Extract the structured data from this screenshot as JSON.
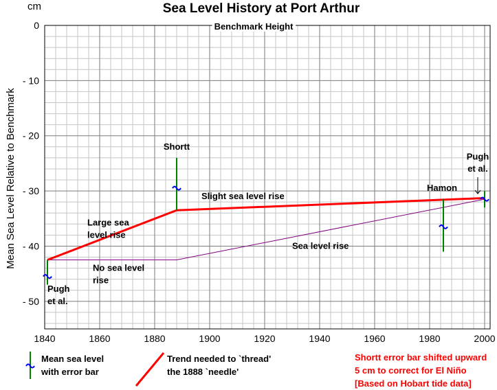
{
  "chart_data": {
    "type": "line",
    "title": "Sea Level History at Port Arthur",
    "unit_label": "cm",
    "ylabel": "Mean Sea Level Relative to Benchmark",
    "xlabel": "",
    "xlim": [
      1840,
      2002
    ],
    "ylim": [
      -55,
      0
    ],
    "x_ticks": [
      1840,
      1860,
      1880,
      1900,
      1920,
      1940,
      1960,
      1980,
      2000
    ],
    "y_ticks": [
      0,
      -10,
      -20,
      -30,
      -40,
      -50
    ],
    "y_tick_labels": [
      "0",
      "- 10",
      "- 20",
      "- 30",
      "- 40",
      "- 50"
    ],
    "grid": true,
    "benchmark": {
      "label": "Benchmark Height",
      "y": 0
    },
    "series": [
      {
        "key": "trend",
        "color": "#ff0000",
        "points": [
          [
            1841,
            -42.5
          ],
          [
            1888,
            -33.5
          ],
          [
            2000,
            -31.3
          ]
        ]
      },
      {
        "key": "sea_level",
        "color": "#800080",
        "points": [
          [
            1841,
            -42.5
          ],
          [
            1888,
            -42.5
          ],
          [
            2000,
            -31.5
          ]
        ]
      }
    ],
    "measurements": [
      {
        "key": "pugh1841",
        "x": 1841,
        "y": -45.5,
        "err_low": -47,
        "err_high": -42.5
      },
      {
        "key": "shortt",
        "x": 1888,
        "y": -29.5,
        "err_low": -33.5,
        "err_high": -24
      },
      {
        "key": "hamon",
        "x": 1985,
        "y": -36.5,
        "err_low": -41,
        "err_high": -31.5
      },
      {
        "key": "pugh2000",
        "x": 2000,
        "y": -31.5,
        "err_low": -33,
        "err_high": -30
      }
    ],
    "annotations": {
      "shortt": "Shortt",
      "hamon": "Hamon",
      "pugh_top": [
        "Pugh",
        "et al."
      ],
      "pugh_bottom": [
        "Pugh",
        "et al."
      ],
      "slight_rise": "Slight sea level rise",
      "large_rise": [
        "Large sea",
        "level rise"
      ],
      "sea_rise": "Sea level rise",
      "no_rise": [
        "No sea level",
        "rise"
      ]
    },
    "legend": {
      "measure": [
        "Mean sea level",
        "with error bar"
      ],
      "trend": [
        "Trend needed to `thread'",
        "the 1888 `needle'"
      ],
      "colors": {
        "error_bar": "#008000",
        "mean_mark": "#0000ff",
        "trend": "#ff0000"
      }
    },
    "note": [
      "Shortt error bar shifted upward",
      "5 cm to  correct for El Niño",
      "[Based on Hobart tide data]"
    ]
  }
}
